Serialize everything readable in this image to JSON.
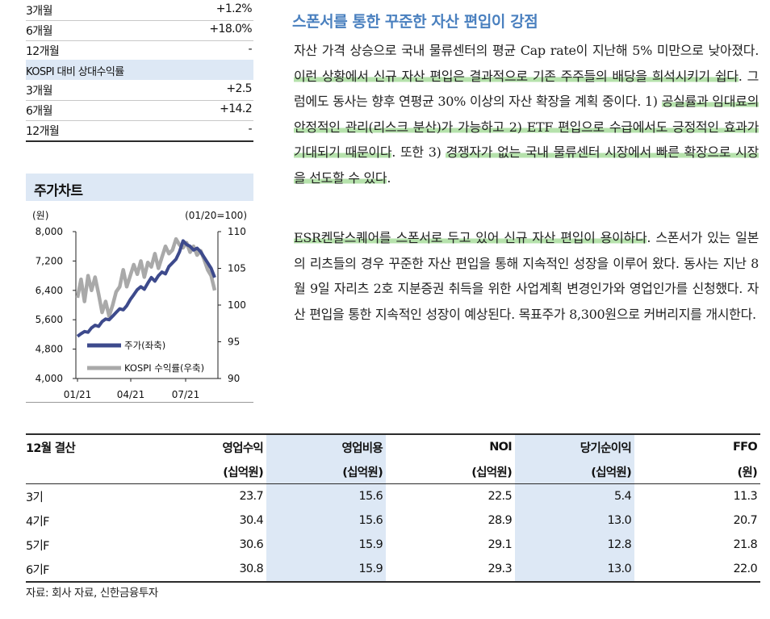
{
  "returns": {
    "absolute": [
      {
        "period": "3개월",
        "value": "+1.2%"
      },
      {
        "period": "6개월",
        "value": "+18.0%"
      },
      {
        "period": "12개월",
        "value": "-"
      }
    ],
    "relative_header": "KOSPI 대비 상대수익률",
    "relative": [
      {
        "period": "3개월",
        "value": "+2.5"
      },
      {
        "period": "6개월",
        "value": "+14.2"
      },
      {
        "period": "12개월",
        "value": "-"
      }
    ]
  },
  "chart_section": {
    "title": "주가차트",
    "left_unit": "(원)",
    "right_unit": "(01/20=100)"
  },
  "chart_data": {
    "type": "line",
    "x_ticks": [
      "01/21",
      "04/21",
      "07/21"
    ],
    "y_left": {
      "ticks": [
        "8,000",
        "7,200",
        "6,400",
        "5,600",
        "4,800",
        "4,000"
      ],
      "range": [
        4000,
        8000
      ]
    },
    "y_right": {
      "ticks": [
        "110",
        "105",
        "100",
        "95",
        "90"
      ],
      "range": [
        90,
        110
      ]
    },
    "legend_position": "bottom-left",
    "series": [
      {
        "name": "주가(좌축)",
        "axis": "left",
        "color": "#3d4a8c",
        "values": [
          5150,
          5220,
          5280,
          5260,
          5380,
          5450,
          5420,
          5550,
          5620,
          5600,
          5700,
          5800,
          5900,
          5870,
          5980,
          6150,
          6280,
          6420,
          6500,
          6430,
          6600,
          6750,
          6650,
          6800,
          6900,
          6850,
          7050,
          7150,
          7250,
          7450,
          7750,
          7650,
          7600,
          7500,
          7550,
          7450,
          7300,
          7150,
          7000,
          6750
        ]
      },
      {
        "name": "KOSPI 수익률(우축)",
        "axis": "right",
        "color": "#a9a9a9",
        "values": [
          101,
          103.5,
          100.5,
          104,
          102,
          103.8,
          101.5,
          99,
          100.5,
          98.5,
          100,
          101.8,
          102.5,
          104.8,
          102.5,
          104,
          105.5,
          104.2,
          106,
          103.8,
          105.8,
          105.2,
          107,
          105,
          106.5,
          108,
          107,
          107.5,
          109,
          108.2,
          107.8,
          108.5,
          107.2,
          108,
          106.8,
          107.4,
          106.2,
          104.8,
          104,
          102
        ]
      }
    ]
  },
  "section_title": "스폰서를 통한 꾸준한 자산 편입이 강점",
  "paragraph1": [
    {
      "t": "자산 가격 상승으로 국내 물류센터의 평균 Cap rate이 지난해 5% 미만으로 낮아졌다. ",
      "hl": false
    },
    {
      "t": "이런 상황에서 신규 자산 편입은 결과적으로 기존 주주들의 배당을 희석시키기 쉽다",
      "hl": true
    },
    {
      "t": ". 그럼에도 동사는 향후 연평균 30% 이상의 자산 확장을 계획 중이다. 1) ",
      "hl": false
    },
    {
      "t": "공실률과 임대료의 안정적인 관리(리스크 분산)가 가능하고 2) ETF 편입으로 수급에서도 긍정적인 효과가 기대되기 때문이다",
      "hl": true
    },
    {
      "t": ". 또한 3) ",
      "hl": false
    },
    {
      "t": "경쟁자가 없는 국내 물류센터 시장에서 빠른 확장으로 시장을 선도할 수 있다",
      "hl": true
    },
    {
      "t": ".",
      "hl": false
    }
  ],
  "paragraph2": [
    {
      "t": "ESR켄달스퀘어를 스폰서로 두고 있어 신규 자산 편입이 용이하다",
      "hl": true
    },
    {
      "t": ". 스폰서가 있는 일본의 리츠들의 경우 꾸준한 자산 편입을 통해 지속적인 성장을 이루어 왔다. 동사는 지난 8월 9일 자리츠 2호 지분증권 취득을 위한 사업계획 변경인가와 영업인가를 신청했다. 자산 편입을 통한 지속적인 성장이 예상된다. 목표주가 8,300원으로 커버리지를 개시한다.",
      "hl": false
    }
  ],
  "fin_table": {
    "headers": [
      "12월 결산",
      "영업수익",
      "영업비용",
      "NOI",
      "당기순이익",
      "FFO"
    ],
    "units": [
      "",
      "(십억원)",
      "(십억원)",
      "(십억원)",
      "(십억원)",
      "(원)"
    ],
    "rows": [
      [
        "3기",
        "23.7",
        "15.6",
        "22.5",
        "5.4",
        "11.3"
      ],
      [
        "4기F",
        "30.4",
        "15.6",
        "28.9",
        "13.0",
        "20.7"
      ],
      [
        "5기F",
        "30.6",
        "15.9",
        "29.1",
        "12.8",
        "21.8"
      ],
      [
        "6기F",
        "30.8",
        "15.9",
        "29.3",
        "13.0",
        "22.0"
      ]
    ]
  },
  "source": "자료: 회사 자료, 신한금융투자"
}
